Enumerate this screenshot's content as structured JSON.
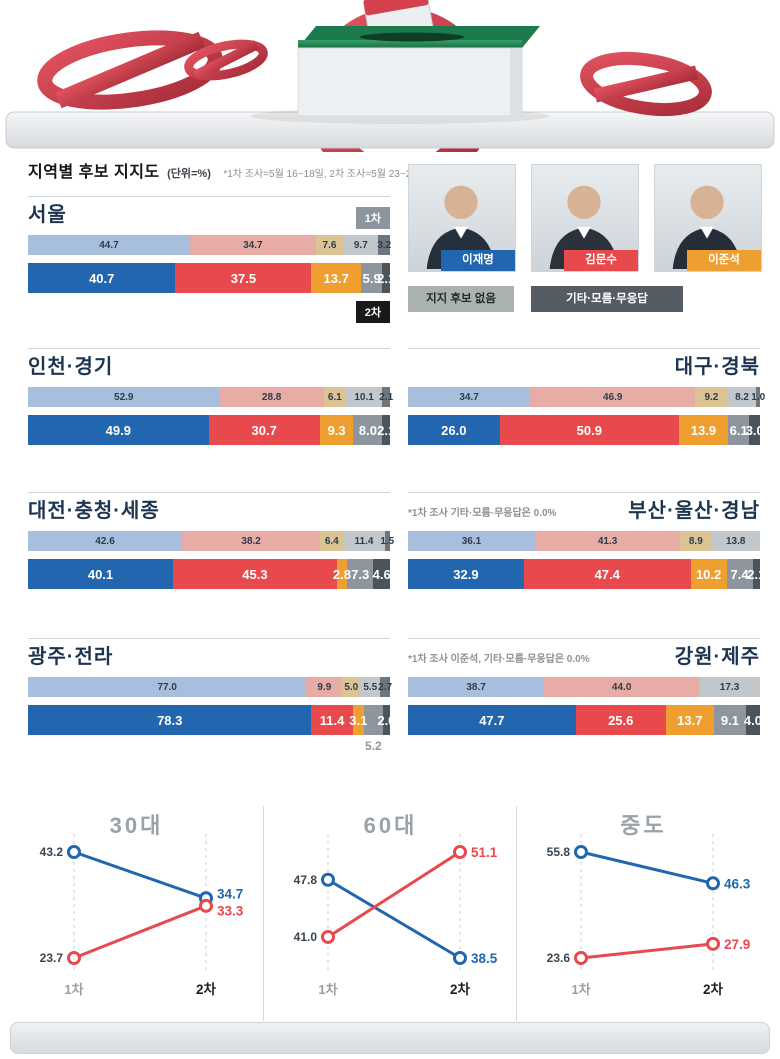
{
  "header": {
    "title": "지역별 후보 지지도",
    "unit": "(단위=%)",
    "survey_note": "*1차 조사=5월 16~18일, 2차 조사=5월 23~25일"
  },
  "tags": {
    "r1": "1차",
    "r2": "2차"
  },
  "candidates": [
    {
      "name": "이재명",
      "color": "#2166ae"
    },
    {
      "name": "김문수",
      "color": "#e8494c"
    },
    {
      "name": "이준석",
      "color": "#ef9f30"
    }
  ],
  "legend": [
    {
      "label": "지지 후보 없음",
      "bg": "#a9b2b0",
      "fg": "#222c2a"
    },
    {
      "label": "기타·모름·무응답",
      "bg": "#555c63",
      "fg": "#ffffff"
    }
  ],
  "colors": {
    "r1": [
      "#a8bedd",
      "#e7aca6",
      "#dbc393",
      "#c2c7cc",
      "#6e767d"
    ],
    "r2": [
      "#2166ae",
      "#e8494c",
      "#ef9f30",
      "#8d969e",
      "#4c5359"
    ],
    "blue": "#2166ae",
    "red": "#e8494c"
  },
  "chart_data": [
    {
      "type": "bar",
      "stacked": true,
      "title": "서울",
      "note": "",
      "series_labels": [
        "이재명",
        "김문수",
        "이준석",
        "지지 후보 없음",
        "기타·모름·무응답"
      ],
      "rounds": [
        {
          "label": "1차",
          "values": [
            44.7,
            34.7,
            7.6,
            9.7,
            3.2
          ]
        },
        {
          "label": "2차",
          "values": [
            40.7,
            37.5,
            13.7,
            5.9,
            2.1
          ]
        }
      ]
    },
    {
      "type": "bar",
      "stacked": true,
      "title": "인천·경기",
      "note": "",
      "series_labels": [
        "이재명",
        "김문수",
        "이준석",
        "지지 후보 없음",
        "기타·모름·무응답"
      ],
      "rounds": [
        {
          "label": "1차",
          "values": [
            52.9,
            28.8,
            6.1,
            10.1,
            2.1
          ]
        },
        {
          "label": "2차",
          "values": [
            49.9,
            30.7,
            9.3,
            8.0,
            2.1
          ]
        }
      ]
    },
    {
      "type": "bar",
      "stacked": true,
      "title": "대전·충청·세종",
      "note": "",
      "series_labels": [
        "이재명",
        "김문수",
        "이준석",
        "지지 후보 없음",
        "기타·모름·무응답"
      ],
      "rounds": [
        {
          "label": "1차",
          "values": [
            42.6,
            38.2,
            6.4,
            11.4,
            1.5
          ]
        },
        {
          "label": "2차",
          "values": [
            40.1,
            45.3,
            2.8,
            7.3,
            4.6
          ]
        }
      ]
    },
    {
      "type": "bar",
      "stacked": true,
      "title": "광주·전라",
      "note": "",
      "below_label_index": 3,
      "series_labels": [
        "이재명",
        "김문수",
        "이준석",
        "지지 후보 없음",
        "기타·모름·무응답"
      ],
      "rounds": [
        {
          "label": "1차",
          "values": [
            77.0,
            9.9,
            5.0,
            5.5,
            2.7
          ]
        },
        {
          "label": "2차",
          "values": [
            78.3,
            11.4,
            3.1,
            5.2,
            2.0
          ]
        }
      ]
    },
    {
      "type": "bar",
      "stacked": true,
      "title": "대구·경북",
      "note": "",
      "series_labels": [
        "이재명",
        "김문수",
        "이준석",
        "지지 후보 없음",
        "기타·모름·무응답"
      ],
      "rounds": [
        {
          "label": "1차",
          "values": [
            34.7,
            46.9,
            9.2,
            8.2,
            1.0
          ]
        },
        {
          "label": "2차",
          "values": [
            26.0,
            50.9,
            13.9,
            6.1,
            3.0
          ]
        }
      ]
    },
    {
      "type": "bar",
      "stacked": true,
      "title": "부산·울산·경남",
      "note": "*1차 조사 기타·모름·무응답은 0.0%",
      "series_labels": [
        "이재명",
        "김문수",
        "이준석",
        "지지 후보 없음",
        "기타·모름·무응답"
      ],
      "rounds": [
        {
          "label": "1차",
          "values": [
            36.1,
            41.3,
            8.9,
            13.8,
            0
          ]
        },
        {
          "label": "2차",
          "values": [
            32.9,
            47.4,
            10.2,
            7.4,
            2.1
          ]
        }
      ]
    },
    {
      "type": "bar",
      "stacked": true,
      "title": "강원·제주",
      "note": "*1차 조사 이준석, 기타·모름·무응답은 0.0%",
      "series_labels": [
        "이재명",
        "김문수",
        "이준석",
        "지지 후보 없음",
        "기타·모름·무응답"
      ],
      "rounds": [
        {
          "label": "1차",
          "values": [
            38.7,
            44.0,
            0,
            17.3,
            0
          ]
        },
        {
          "label": "2차",
          "values": [
            47.7,
            25.6,
            13.7,
            9.1,
            4.0
          ]
        }
      ]
    },
    {
      "type": "line",
      "title": "30대",
      "x": [
        "1차",
        "2차"
      ],
      "series": [
        {
          "name": "이재명",
          "color_key": "blue",
          "values": [
            43.2,
            34.7
          ]
        },
        {
          "name": "김문수",
          "color_key": "red",
          "values": [
            23.7,
            33.3
          ]
        }
      ]
    },
    {
      "type": "line",
      "title": "60대",
      "x": [
        "1차",
        "2차"
      ],
      "series": [
        {
          "name": "이재명",
          "color_key": "blue",
          "values": [
            47.8,
            38.5
          ]
        },
        {
          "name": "김문수",
          "color_key": "red",
          "values": [
            41.0,
            51.1
          ]
        }
      ]
    },
    {
      "type": "line",
      "title": "중도",
      "x": [
        "1차",
        "2차"
      ],
      "series": [
        {
          "name": "이재명",
          "color_key": "blue",
          "values": [
            55.8,
            46.3
          ]
        },
        {
          "name": "김문수",
          "color_key": "red",
          "values": [
            23.6,
            27.9
          ]
        }
      ]
    }
  ]
}
